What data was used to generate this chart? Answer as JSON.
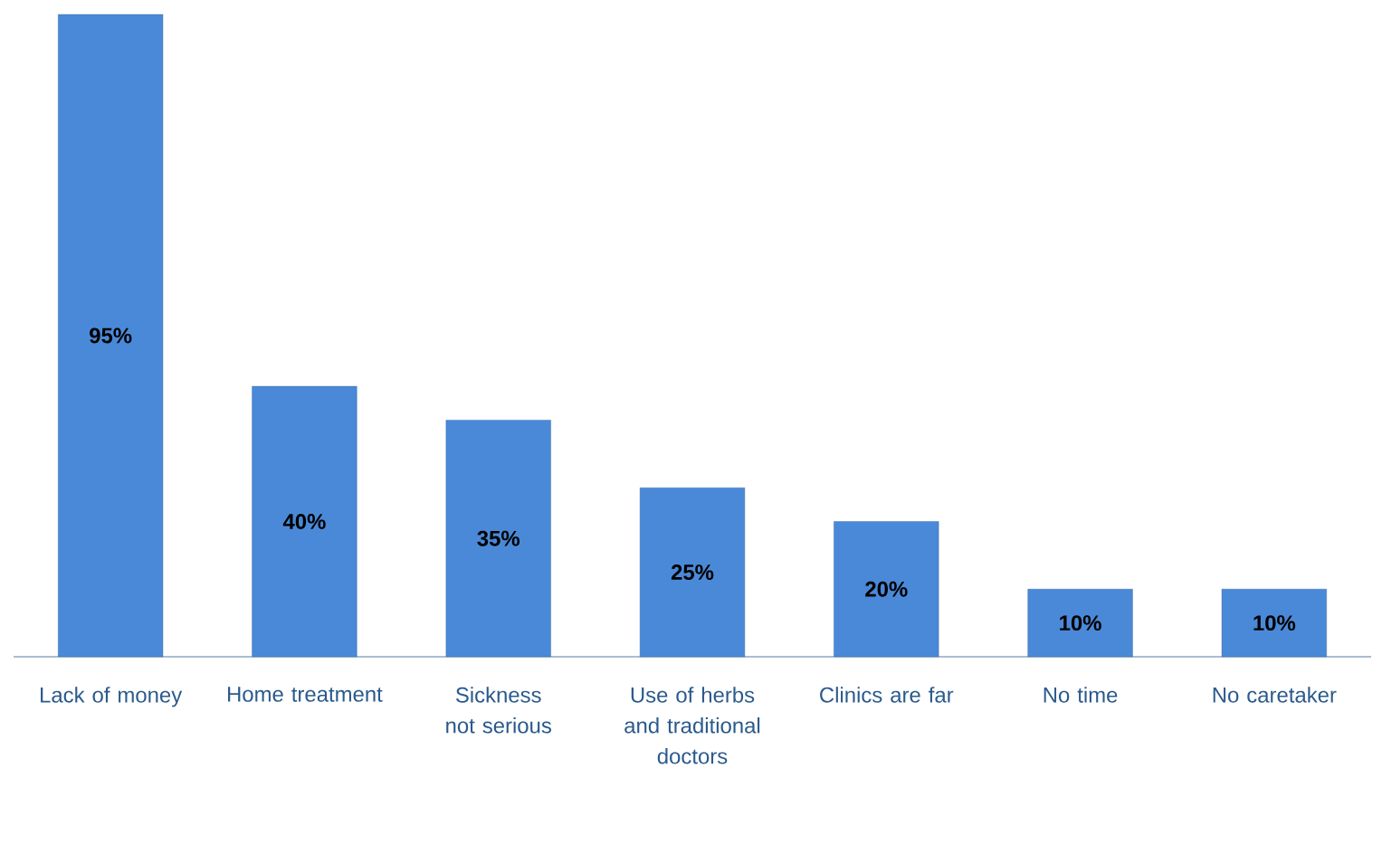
{
  "chart_data": {
    "type": "bar",
    "categories": [
      "Lack of money",
      "Home treatment",
      "Sickness not serious",
      "Use of herbs and traditional doctors",
      "Clinics are far",
      "No time",
      "No caretaker"
    ],
    "values": [
      95,
      40,
      35,
      25,
      20,
      10,
      10
    ],
    "value_labels": [
      "95%",
      "40%",
      "35%",
      "25%",
      "20%",
      "10%",
      "10%"
    ],
    "color": "#4a89d8"
  }
}
